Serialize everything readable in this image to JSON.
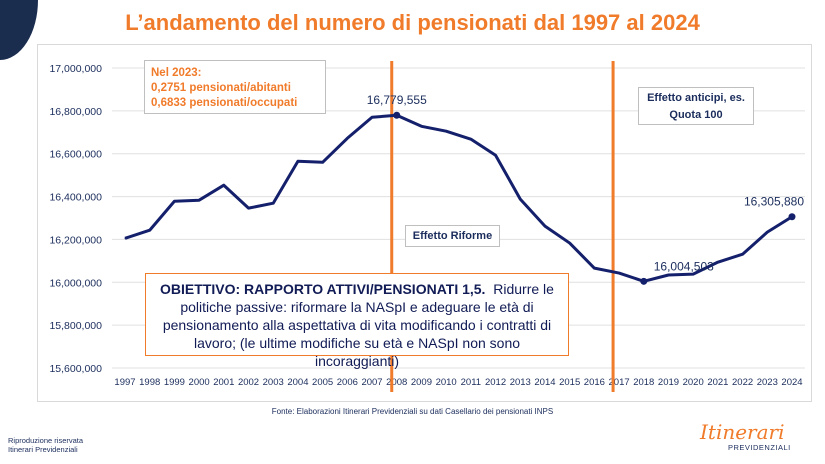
{
  "title": "L’andamento del numero di pensionati dal 1997 al 2024",
  "chart_data": {
    "type": "line",
    "x": [
      1997,
      1998,
      1999,
      2000,
      2001,
      2002,
      2003,
      2004,
      2005,
      2006,
      2007,
      2008,
      2009,
      2010,
      2011,
      2012,
      2013,
      2014,
      2015,
      2016,
      2017,
      2018,
      2019,
      2020,
      2021,
      2022,
      2023,
      2024
    ],
    "values": [
      16205000,
      16243000,
      16378000,
      16383000,
      16453000,
      16346000,
      16369000,
      16565000,
      16560000,
      16672000,
      16770000,
      16779555,
      16728000,
      16705000,
      16668000,
      16593000,
      16388000,
      16262000,
      16183000,
      16066000,
      16043000,
      16004503,
      16034000,
      16038000,
      16094000,
      16131000,
      16234000,
      16305880
    ],
    "ylim": [
      15600000,
      17000000
    ],
    "yticks": [
      "15,600,000",
      "15,800,000",
      "16,000,000",
      "16,200,000",
      "16,400,000",
      "16,600,000",
      "16,800,000",
      "17,000,000"
    ],
    "grid": true,
    "data_labels": [
      {
        "year": 2008,
        "text": "16,779,555"
      },
      {
        "year": 2018,
        "text": "16,004,503"
      },
      {
        "year": 2024,
        "text": "16,305,880"
      }
    ],
    "vertical_lines": [
      2008,
      2017
    ],
    "colors": {
      "line": "#14206b",
      "markers": "#f07b2a",
      "title": "#f07b2a"
    }
  },
  "notes": {
    "n2023": [
      "Nel 2023:",
      "0,2751 pensionati/abitanti",
      "0,6833 pensionati/occupati"
    ],
    "riforme": "Effetto Riforme",
    "anticipi": [
      "Effetto anticipi, es.",
      "Quota 100"
    ],
    "goal_bold": "OBIETTIVO: RAPPORTO ATTIVI/PENSIONATI 1,5.",
    "goal_text": "Ridurre le politiche passive: riformare la NASpI e adeguare le età di pensionamento alla aspettativa di vita modificando i contratti di lavoro; (le ultime modifiche su età e NASpI non sono incoraggianti)"
  },
  "footer": {
    "source": "Fonte: Elaborazioni Itinerari Previdenziali su dati Casellario dei pensionati INPS",
    "repro": [
      "Riproduzione riservata",
      "Itinerari Previdenziali"
    ],
    "logo": [
      "Itinerari",
      "PREVIDENZIALI"
    ]
  }
}
